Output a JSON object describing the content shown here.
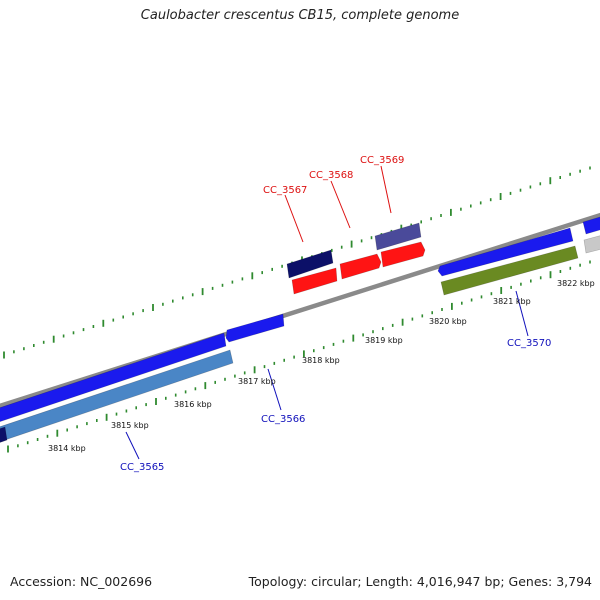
{
  "title": "Caulobacter crescentus CB15, complete genome",
  "footer": {
    "accession": "Accession: NC_002696",
    "summary": "Topology: circular; Length: 4,016,947 bp; Genes: 3,794"
  },
  "colors": {
    "backbone": "#8a8a8a",
    "tick": "#2f8a2f",
    "gene_label_forward": "#dd1111",
    "gene_label_reverse": "#1111bb",
    "kbp_label": "#111111",
    "blue": "#1a1aee",
    "light_blue": "#4a86c6",
    "navy": "#0c1068",
    "red": "#ff1414",
    "slate": "#4a4a9a",
    "olive": "#6a8a22",
    "grey": "#c8c8c8"
  },
  "kbp_labels": [
    "3814 kbp",
    "3815 kbp",
    "3816 kbp",
    "3817 kbp",
    "3818 kbp",
    "3819 kbp",
    "3820 kbp",
    "3821 kbp",
    "3822 kbp"
  ],
  "gene_labels": [
    {
      "text": "CC_3565",
      "strand": "reverse"
    },
    {
      "text": "CC_3566",
      "strand": "reverse"
    },
    {
      "text": "CC_3567",
      "strand": "forward"
    },
    {
      "text": "CC_3568",
      "strand": "forward"
    },
    {
      "text": "CC_3569",
      "strand": "forward"
    },
    {
      "text": "CC_3570",
      "strand": "reverse"
    }
  ]
}
